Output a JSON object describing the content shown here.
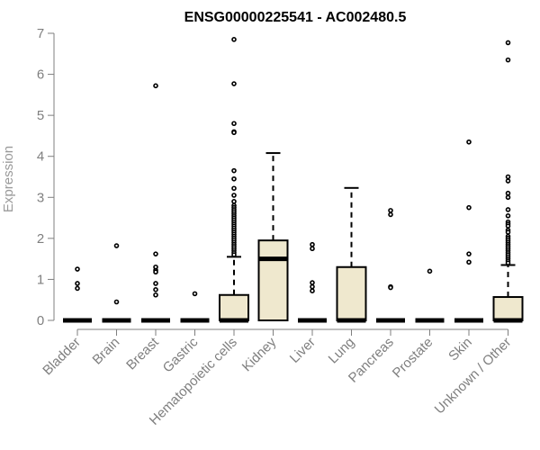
{
  "chart_data": {
    "type": "boxplot",
    "title": "ENSG00000225541 - AC002480.5",
    "ylabel": "Expression",
    "xlabel": "",
    "ylim": [
      0,
      7
    ],
    "yticks": [
      0,
      1,
      2,
      3,
      4,
      5,
      6,
      7
    ],
    "box_fill_color": "#efe8ce",
    "categories": [
      "Bladder",
      "Brain",
      "Breast",
      "Gastric",
      "Hematopoietic cells",
      "Kidney",
      "Liver",
      "Lung",
      "Pancreas",
      "Prostate",
      "Skin",
      "Unknown / Other"
    ],
    "boxes": [
      {
        "label": "Bladder",
        "min": 0,
        "q1": 0,
        "median": 0,
        "q3": 0,
        "max": 0,
        "outliers": [
          1.25,
          0.9,
          0.78
        ]
      },
      {
        "label": "Brain",
        "min": 0,
        "q1": 0,
        "median": 0,
        "q3": 0,
        "max": 0,
        "outliers": [
          1.82,
          0.45
        ]
      },
      {
        "label": "Breast",
        "min": 0,
        "q1": 0,
        "median": 0,
        "q3": 0,
        "max": 0,
        "outliers": [
          5.72,
          1.62,
          1.3,
          1.22,
          1.18,
          0.9,
          0.75,
          0.62
        ]
      },
      {
        "label": "Gastric",
        "min": 0,
        "q1": 0,
        "median": 0,
        "q3": 0,
        "max": 0,
        "outliers": [
          0.65
        ]
      },
      {
        "label": "Hematopoietic cells",
        "min": 0,
        "q1": 0,
        "median": 0,
        "q3": 0.62,
        "max": 1.55,
        "outliers": [
          6.85,
          5.77,
          4.8,
          4.6,
          4.58,
          3.65,
          3.45,
          3.22,
          3.05,
          2.9,
          2.8,
          2.75,
          2.7,
          2.65,
          2.6,
          2.55,
          2.5,
          2.45,
          2.4,
          2.35,
          2.3,
          2.25,
          2.2,
          2.15,
          2.1,
          2.05,
          2.0,
          1.95,
          1.9,
          1.85,
          1.8,
          1.75,
          1.7,
          1.65,
          1.6
        ]
      },
      {
        "label": "Kidney",
        "min": 0,
        "q1": 0,
        "median": 1.5,
        "q3": 1.95,
        "max": 4.08,
        "outliers": []
      },
      {
        "label": "Liver",
        "min": 0,
        "q1": 0,
        "median": 0,
        "q3": 0,
        "max": 0,
        "outliers": [
          1.85,
          1.75,
          0.92,
          0.82,
          0.72
        ]
      },
      {
        "label": "Lung",
        "min": 0,
        "q1": 0,
        "median": 0,
        "q3": 1.3,
        "max": 3.23,
        "outliers": []
      },
      {
        "label": "Pancreas",
        "min": 0,
        "q1": 0,
        "median": 0,
        "q3": 0,
        "max": 0,
        "outliers": [
          2.68,
          2.58,
          0.82,
          0.8
        ]
      },
      {
        "label": "Prostate",
        "min": 0,
        "q1": 0,
        "median": 0,
        "q3": 0,
        "max": 0,
        "outliers": [
          1.2
        ]
      },
      {
        "label": "Skin",
        "min": 0,
        "q1": 0,
        "median": 0,
        "q3": 0,
        "max": 0,
        "outliers": [
          4.35,
          2.75,
          1.62,
          1.42
        ]
      },
      {
        "label": "Unknown / Other",
        "min": 0,
        "q1": 0,
        "median": 0,
        "q3": 0.57,
        "max": 1.35,
        "outliers": [
          6.77,
          6.35,
          3.5,
          3.4,
          3.1,
          3.0,
          2.7,
          2.55,
          2.4,
          2.35,
          2.3,
          2.2,
          2.15,
          2.05,
          2.0,
          1.95,
          1.9,
          1.85,
          1.8,
          1.75,
          1.7,
          1.65,
          1.6,
          1.55,
          1.5,
          1.45,
          1.4
        ]
      }
    ]
  }
}
